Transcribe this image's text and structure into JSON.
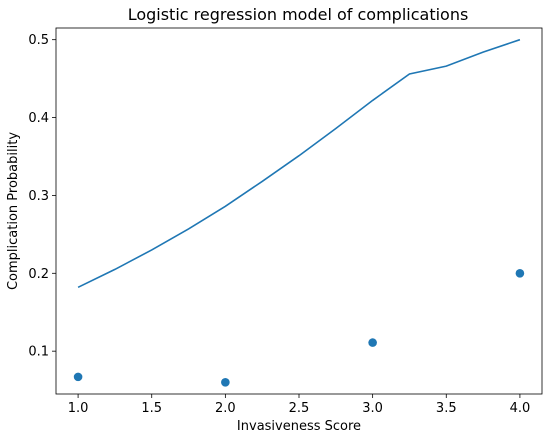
{
  "chart_data": {
    "type": "line",
    "title": "Logistic regression model of complications",
    "xlabel": "Invasiveness Score",
    "ylabel": "Complication Probability",
    "xlim": [
      0.85,
      4.15
    ],
    "ylim": [
      0.045,
      0.515
    ],
    "xticks": [
      1.0,
      1.5,
      2.0,
      2.5,
      3.0,
      3.5,
      4.0
    ],
    "xtick_labels": [
      "1.0",
      "1.5",
      "2.0",
      "2.5",
      "3.0",
      "3.5",
      "4.0"
    ],
    "yticks": [
      0.1,
      0.2,
      0.3,
      0.4,
      0.5
    ],
    "ytick_labels": [
      "0.1",
      "0.2",
      "0.3",
      "0.4",
      "0.5"
    ],
    "grid": false,
    "series": [
      {
        "kind": "line",
        "color": "#1f77b4",
        "x": [
          1.0,
          1.25,
          1.5,
          1.75,
          2.0,
          2.25,
          2.5,
          2.75,
          3.0,
          3.25,
          3.5,
          3.75,
          4.0
        ],
        "y": [
          0.182,
          0.205,
          0.23,
          0.257,
          0.286,
          0.318,
          0.351,
          0.386,
          0.422,
          0.456,
          0.466,
          0.484,
          0.5
        ]
      },
      {
        "kind": "scatter",
        "color": "#1f77b4",
        "x": [
          1.0,
          2.0,
          3.0,
          4.0
        ],
        "y": [
          0.067,
          0.06,
          0.111,
          0.2
        ]
      }
    ]
  }
}
